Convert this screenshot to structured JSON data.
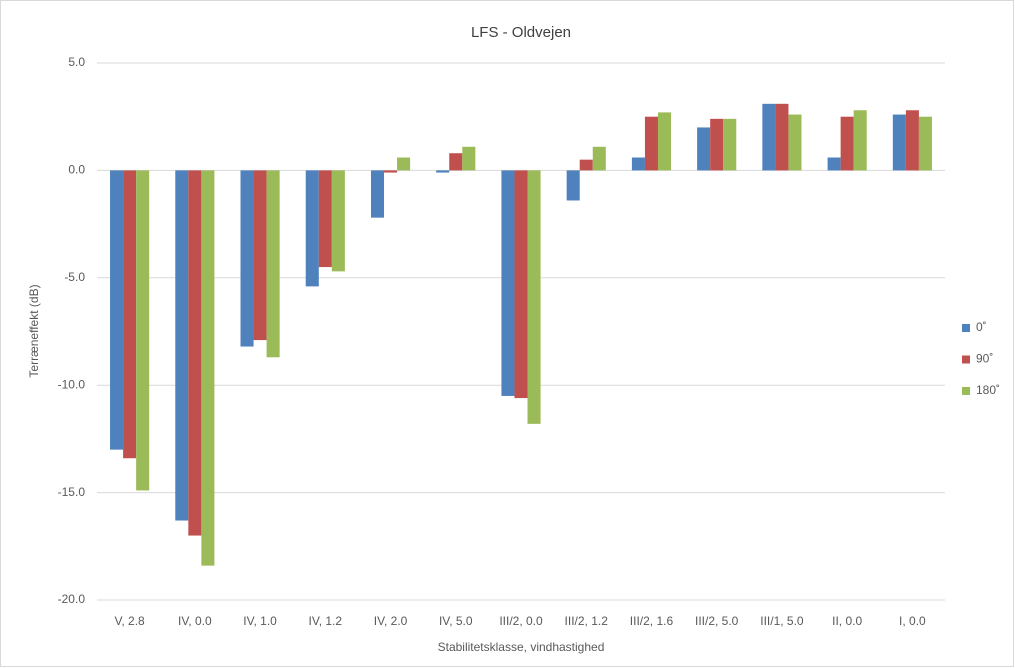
{
  "chart_data": {
    "type": "bar",
    "title": "LFS - Oldvejen",
    "x_label": "Stabilitetsklasse, vindhastighed",
    "y_label": "Terræneffekt (dB)",
    "categories": [
      "V, 2.8",
      "IV, 0.0",
      "IV, 1.0",
      "IV, 1.2",
      "IV, 2.0",
      "IV, 5.0",
      "III/2, 0.0",
      "III/2, 1.2",
      "III/2, 1.6",
      "III/2, 5.0",
      "III/1, 5.0",
      "II, 0.0",
      "I, 0.0"
    ],
    "series": [
      {
        "name": "0˚",
        "color": "#4f81bd",
        "values": [
          -13.0,
          -16.3,
          -8.2,
          -5.4,
          -2.2,
          -0.1,
          -10.5,
          -1.4,
          0.6,
          2.0,
          3.1,
          0.6,
          2.6
        ]
      },
      {
        "name": "90˚",
        "color": "#c0504d",
        "values": [
          -13.4,
          -17.0,
          -7.9,
          -4.5,
          -0.1,
          0.8,
          -10.6,
          0.5,
          2.5,
          2.4,
          3.1,
          2.5,
          2.8
        ]
      },
      {
        "name": "180˚",
        "color": "#9bbb59",
        "values": [
          -14.9,
          -18.4,
          -8.7,
          -4.7,
          0.6,
          1.1,
          -11.8,
          1.1,
          2.7,
          2.4,
          2.6,
          2.8,
          2.5
        ]
      }
    ],
    "ylim": [
      -20,
      5
    ],
    "yticks": [
      {
        "value": -20,
        "label": "-20.0"
      },
      {
        "value": -15,
        "label": "-15.0"
      },
      {
        "value": -10,
        "label": "-10.0"
      },
      {
        "value": -5,
        "label": "-5.0"
      },
      {
        "value": 0,
        "label": "0.0"
      },
      {
        "value": 5,
        "label": "5.0"
      }
    ],
    "grid": true,
    "legend": "right"
  }
}
